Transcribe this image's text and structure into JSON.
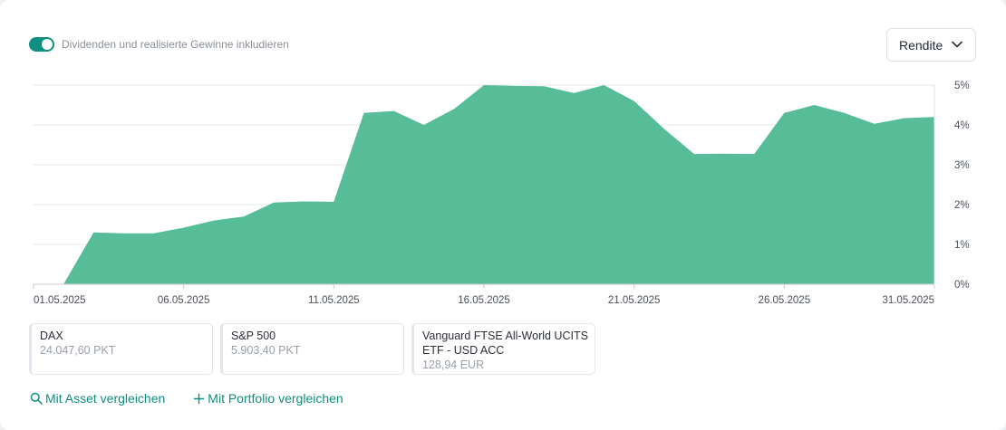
{
  "toggle": {
    "label": "Dividenden und realisierte Gewinne inkludieren",
    "on": true
  },
  "select": {
    "value": "Rendite"
  },
  "colors": {
    "accent": "#0f8f80",
    "area": "#57bc98"
  },
  "chart_data": {
    "type": "area",
    "x_tick_labels": [
      "01.05.2025",
      "06.05.2025",
      "11.05.2025",
      "16.05.2025",
      "21.05.2025",
      "26.05.2025",
      "31.05.2025"
    ],
    "y_tick_labels": [
      "5%",
      "4%",
      "3%",
      "2%",
      "1%",
      "0%"
    ],
    "ylim": [
      0,
      5
    ],
    "grid": true,
    "x": [
      "01.05.2025",
      "02.05.2025",
      "03.05.2025",
      "04.05.2025",
      "05.05.2025",
      "06.05.2025",
      "07.05.2025",
      "08.05.2025",
      "09.05.2025",
      "10.05.2025",
      "11.05.2025",
      "12.05.2025",
      "13.05.2025",
      "14.05.2025",
      "15.05.2025",
      "16.05.2025",
      "17.05.2025",
      "18.05.2025",
      "19.05.2025",
      "20.05.2025",
      "21.05.2025",
      "22.05.2025",
      "23.05.2025",
      "24.05.2025",
      "25.05.2025",
      "26.05.2025",
      "27.05.2025",
      "28.05.2025",
      "29.05.2025",
      "30.05.2025",
      "31.05.2025"
    ],
    "values": [
      -0.4,
      0.0,
      1.3,
      1.28,
      1.28,
      1.42,
      1.6,
      1.7,
      2.05,
      2.08,
      2.07,
      4.3,
      4.35,
      4.0,
      4.4,
      5.0,
      4.98,
      4.97,
      4.8,
      5.0,
      4.6,
      3.9,
      3.27,
      3.28,
      3.27,
      4.3,
      4.5,
      4.3,
      4.03,
      4.17,
      4.2
    ]
  },
  "comparisons": [
    {
      "name": "DAX",
      "value": "24.047,60 PKT"
    },
    {
      "name": "S&P 500",
      "value": "5.903,40 PKT"
    },
    {
      "name": "Vanguard FTSE All-World UCITS ETF - USD ACC",
      "value": "128,94 EUR"
    }
  ],
  "actions": {
    "compare_asset": "Mit Asset vergleichen",
    "compare_portfolio": "Mit Portfolio vergleichen"
  }
}
